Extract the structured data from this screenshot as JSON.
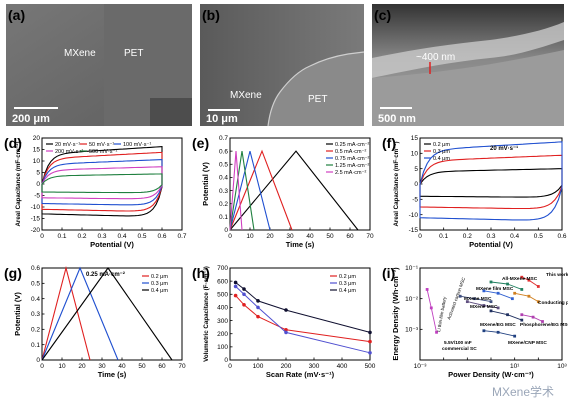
{
  "panels": {
    "a": {
      "label": "(a)",
      "text1": "MXene",
      "text2": "PET",
      "scale": "200 μm"
    },
    "b": {
      "label": "(b)",
      "text1": "MXene",
      "text2": "PET",
      "scale": "10 μm"
    },
    "c": {
      "label": "(c)",
      "text1": "~400 nm",
      "scale": "500 nm"
    },
    "d": {
      "label": "(d)",
      "xlabel": "Potential (V)",
      "ylabel": "Areal Capacitance (mF·cm⁻²)",
      "legend": [
        "20 mV·s⁻¹",
        "50 mV·s⁻¹",
        "100 mV·s⁻¹",
        "200 mV·s⁻¹",
        "500 mV·s⁻¹"
      ]
    },
    "e": {
      "label": "(e)",
      "xlabel": "Time (s)",
      "ylabel": "Potential (V)",
      "legend": [
        "0.25 mA·cm⁻²",
        "0.5 mA·cm⁻²",
        "0.75 mA·cm⁻²",
        "1.25 mA·cm⁻²",
        "2.5 mA·cm⁻²"
      ]
    },
    "f": {
      "label": "(f)",
      "xlabel": "Potential (V)",
      "ylabel": "Areal Capacitance (mF·cm⁻²)",
      "legend": [
        "0.2 μm",
        "0.3 μm",
        "0.4 μm"
      ],
      "annotation": "20 mV·s⁻¹"
    },
    "g": {
      "label": "(g)",
      "xlabel": "Time (s)",
      "ylabel": "Potential (V)",
      "legend": [
        "0.2 μm",
        "0.3 μm",
        "0.4 μm"
      ],
      "annotation": "0.25 mA·cm⁻²"
    },
    "h": {
      "label": "(h)",
      "xlabel": "Scan Rate (mV·s⁻¹)",
      "ylabel": "Volumetric Capacitance (F·cm⁻³)",
      "legend": [
        "0.2 μm",
        "0.3 μm",
        "0.4 μm"
      ]
    },
    "i": {
      "label": "(i)",
      "xlabel": "Power Density (W·cm⁻³)",
      "ylabel": "Energy Density (Wh·cm⁻³)",
      "annotations": [
        "This work",
        "All-MXene MSC",
        "MXene film MSC",
        "Conducting polymer MSC",
        "MXene MSC",
        "MXene MSC",
        "MXene/EG MSC",
        "Phosphorene/EG MSC",
        "MXene/CNP MSC",
        "5.5V/100 mF",
        "commercial SC",
        "Li thin-film battery",
        "Activated carbon MSC"
      ]
    }
  },
  "watermark": "MXene学术",
  "chart_data": [
    {
      "type": "line",
      "panel": "d",
      "xlim": [
        0,
        0.7
      ],
      "ylim": [
        -20,
        20
      ],
      "xticks": [
        0,
        0.1,
        0.2,
        0.3,
        0.4,
        0.5,
        0.6,
        0.7
      ],
      "yticks": [
        -20,
        -15,
        -10,
        -5,
        0,
        5,
        10,
        15,
        20
      ],
      "series": [
        {
          "name": "20 mV·s⁻¹",
          "color": "#000000",
          "amp": 13
        },
        {
          "name": "50 mV·s⁻¹",
          "color": "#e02020",
          "amp": 11
        },
        {
          "name": "100 mV·s⁻¹",
          "color": "#2050d0",
          "amp": 8.5
        },
        {
          "name": "200 mV·s⁻¹",
          "color": "#d040c0",
          "amp": 6
        },
        {
          "name": "500 mV·s⁻¹",
          "color": "#208040",
          "amp": 3.5
        }
      ]
    },
    {
      "type": "line",
      "panel": "e",
      "xlim": [
        0,
        70
      ],
      "ylim": [
        0,
        0.7
      ],
      "xticks": [
        0,
        10,
        20,
        30,
        40,
        50,
        60,
        70
      ],
      "yticks": [
        0,
        0.1,
        0.2,
        0.3,
        0.4,
        0.5,
        0.6,
        0.7
      ],
      "series": [
        {
          "name": "0.25 mA·cm⁻²",
          "color": "#000000",
          "x": [
            0,
            33,
            64
          ],
          "y": [
            0,
            0.6,
            0
          ]
        },
        {
          "name": "0.5 mA·cm⁻²",
          "color": "#e02020",
          "x": [
            0,
            16,
            31
          ],
          "y": [
            0,
            0.6,
            0
          ]
        },
        {
          "name": "0.75 mA·cm⁻²",
          "color": "#2050d0",
          "x": [
            0,
            10,
            20
          ],
          "y": [
            0,
            0.6,
            0
          ]
        },
        {
          "name": "1.25 mA·cm⁻²",
          "color": "#208040",
          "x": [
            0,
            6,
            12
          ],
          "y": [
            0,
            0.6,
            0
          ]
        },
        {
          "name": "2.5 mA·cm⁻²",
          "color": "#d040c0",
          "x": [
            0,
            3,
            6
          ],
          "y": [
            0,
            0.6,
            0
          ]
        }
      ]
    },
    {
      "type": "line",
      "panel": "f",
      "xlim": [
        0,
        0.6
      ],
      "ylim": [
        -15,
        15
      ],
      "xticks": [
        0,
        0.1,
        0.2,
        0.3,
        0.4,
        0.5,
        0.6
      ],
      "yticks": [
        -15,
        -10,
        -5,
        0,
        5,
        10,
        15
      ],
      "series": [
        {
          "name": "0.2 μm",
          "color": "#000000",
          "amp": 4
        },
        {
          "name": "0.3 μm",
          "color": "#e02020",
          "amp": 7.5
        },
        {
          "name": "0.4 μm",
          "color": "#2050d0",
          "amp": 11
        }
      ]
    },
    {
      "type": "line",
      "panel": "g",
      "xlim": [
        0,
        70
      ],
      "ylim": [
        0,
        0.6
      ],
      "xticks": [
        0,
        10,
        20,
        30,
        40,
        50,
        60,
        70
      ],
      "yticks": [
        0,
        0.1,
        0.2,
        0.3,
        0.4,
        0.5,
        0.6
      ],
      "series": [
        {
          "name": "0.2 μm",
          "color": "#e02020",
          "x": [
            0,
            12,
            24
          ],
          "y": [
            0,
            0.6,
            0
          ]
        },
        {
          "name": "0.3 μm",
          "color": "#2050d0",
          "x": [
            0,
            19,
            38
          ],
          "y": [
            0,
            0.6,
            0
          ]
        },
        {
          "name": "0.4 μm",
          "color": "#000000",
          "x": [
            0,
            33,
            65
          ],
          "y": [
            0,
            0.6,
            0
          ]
        }
      ]
    },
    {
      "type": "line",
      "panel": "h",
      "xlim": [
        0,
        500
      ],
      "ylim": [
        0,
        700
      ],
      "xticks": [
        0,
        100,
        200,
        300,
        400,
        500
      ],
      "yticks": [
        0,
        100,
        200,
        300,
        400,
        500,
        600,
        700
      ],
      "series": [
        {
          "name": "0.2 μm",
          "color": "#e02020",
          "x": [
            20,
            50,
            100,
            200,
            500
          ],
          "y": [
            490,
            420,
            330,
            230,
            140
          ]
        },
        {
          "name": "0.3 μm",
          "color": "#5050d0",
          "x": [
            20,
            50,
            100,
            200,
            500
          ],
          "y": [
            560,
            500,
            400,
            210,
            55
          ]
        },
        {
          "name": "0.4 μm",
          "color": "#101030",
          "x": [
            20,
            50,
            100,
            200,
            500
          ],
          "y": [
            590,
            540,
            450,
            380,
            210
          ]
        }
      ]
    },
    {
      "type": "scatter",
      "panel": "i",
      "log": true,
      "xlim": [
        0.001,
        1000
      ],
      "ylim": [
        0.0001,
        0.1
      ],
      "series": [
        {
          "name": "This work",
          "color": "#e03030",
          "x": [
            20,
            40,
            100
          ],
          "y": [
            0.05,
            0.04,
            0.025
          ]
        },
        {
          "name": "All-MXene MSC",
          "color": "#208060",
          "x": [
            1,
            5,
            20
          ],
          "y": [
            0.035,
            0.03,
            0.02
          ]
        },
        {
          "name": "MXene film MSC",
          "color": "#3060d0",
          "x": [
            0.5,
            2,
            8
          ],
          "y": [
            0.018,
            0.015,
            0.01
          ]
        },
        {
          "name": "Conducting polymer MSC",
          "color": "#d08020",
          "x": [
            10,
            40,
            100
          ],
          "y": [
            0.015,
            0.012,
            0.008
          ]
        },
        {
          "name": "MXene MSC",
          "color": "#405080",
          "x": [
            0.05,
            0.2,
            1
          ],
          "y": [
            0.012,
            0.01,
            0.008
          ]
        },
        {
          "name": "MXene MSC",
          "color": "#605080",
          "x": [
            0.1,
            0.5,
            2
          ],
          "y": [
            0.008,
            0.006,
            0.005
          ]
        },
        {
          "name": "MXene/EG MSC",
          "color": "#203060",
          "x": [
            1,
            5,
            20
          ],
          "y": [
            0.004,
            0.003,
            0.002
          ]
        },
        {
          "name": "Phosphorene/EG MSC",
          "color": "#b040b0",
          "x": [
            20,
            60,
            150
          ],
          "y": [
            0.003,
            0.0025,
            0.0018
          ]
        },
        {
          "name": "MXene/CNP MSC",
          "color": "#204080",
          "x": [
            0.5,
            2,
            10
          ],
          "y": [
            0.0009,
            0.0008,
            0.0006
          ]
        },
        {
          "name": "Li thin-film battery",
          "color": "#c040c0",
          "x": [
            0.002,
            0.003,
            0.005
          ],
          "y": [
            0.02,
            0.005,
            0.0008
          ]
        }
      ]
    }
  ]
}
